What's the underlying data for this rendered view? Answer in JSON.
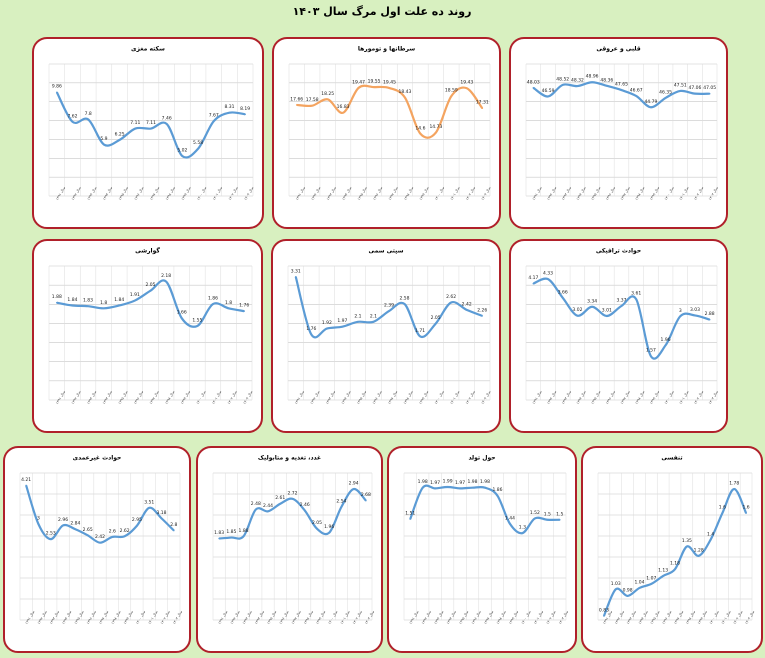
{
  "title": "روند ده علت اول مرگ سال ۱۴۰۳",
  "chart_data": [
    {
      "type": "line",
      "title": "سکته مغزی",
      "categories": [
        "سال ۱۳۹۱",
        "سال ۱۳۹۲",
        "سال ۱۳۹۳",
        "سال ۱۳۹۴",
        "سال ۱۳۹۵",
        "سال ۱۳۹۶",
        "سال ۱۳۹۷",
        "سال ۱۳۹۸",
        "سال ۱۳۹۹",
        "سال ۱۴۰۰",
        "سال ۱۴۰۱",
        "سال ۱۴۰۲",
        "سال ۱۴۰۳"
      ],
      "values": [
        9.86,
        7.62,
        7.8,
        5.9,
        6.25,
        7.11,
        7.11,
        7.46,
        5.02,
        5.58,
        7.67,
        8.31,
        8.19
      ],
      "color": "#5b9bd5",
      "ylim": [
        2,
        12
      ]
    },
    {
      "type": "line",
      "title": "سرطانها و تومورها",
      "categories": [
        "سال ۱۳۹۱",
        "سال ۱۳۹۲",
        "سال ۱۳۹۳",
        "سال ۱۳۹۴",
        "سال ۱۳۹۵",
        "سال ۱۳۹۶",
        "سال ۱۳۹۷",
        "سال ۱۳۹۸",
        "سال ۱۳۹۹",
        "سال ۱۴۰۰",
        "سال ۱۴۰۱",
        "سال ۱۴۰۲",
        "سال ۱۴۰۳"
      ],
      "values": [
        17.66,
        17.58,
        18.25,
        16.83,
        19.47,
        19.55,
        19.45,
        18.43,
        14.6,
        14.73,
        18.59,
        19.43,
        17.31
      ],
      "color": "#f4a460",
      "ylim": [
        8,
        22
      ]
    },
    {
      "type": "line",
      "title": "قلبی و عروقی",
      "categories": [
        "سال ۱۳۹۱",
        "سال ۱۳۹۲",
        "سال ۱۳۹۳",
        "سال ۱۳۹۴",
        "سال ۱۳۹۵",
        "سال ۱۳۹۶",
        "سال ۱۳۹۷",
        "سال ۱۳۹۸",
        "سال ۱۳۹۹",
        "سال ۱۴۰۰",
        "سال ۱۴۰۱",
        "سال ۱۴۰۲",
        "سال ۱۴۰۳"
      ],
      "values": [
        48.03,
        46.59,
        48.52,
        48.32,
        48.96,
        48.36,
        47.65,
        46.67,
        44.79,
        46.35,
        47.51,
        47.06,
        47.05
      ],
      "color": "#5b9bd5",
      "ylim": [
        30,
        52
      ]
    },
    {
      "type": "line",
      "title": "گوارشی",
      "categories": [
        "سال ۱۳۹۱",
        "سال ۱۳۹۲",
        "سال ۱۳۹۳",
        "سال ۱۳۹۴",
        "سال ۱۳۹۵",
        "سال ۱۳۹۶",
        "سال ۱۳۹۷",
        "سال ۱۳۹۸",
        "سال ۱۳۹۹",
        "سال ۱۴۰۰",
        "سال ۱۴۰۱",
        "سال ۱۴۰۲",
        "سال ۱۴۰۳"
      ],
      "values": [
        1.88,
        1.84,
        1.83,
        1.8,
        1.84,
        1.91,
        2.05,
        2.18,
        1.66,
        1.55,
        1.86,
        1.8,
        1.76
      ],
      "color": "#5b9bd5",
      "ylim": [
        0.5,
        2.4
      ]
    },
    {
      "type": "line",
      "title": "سپتی سمی",
      "categories": [
        "سال ۱۳۹۱",
        "سال ۱۳۹۲",
        "سال ۱۳۹۳",
        "سال ۱۳۹۴",
        "سال ۱۳۹۵",
        "سال ۱۳۹۶",
        "سال ۱۳۹۷",
        "سال ۱۳۹۸",
        "سال ۱۳۹۹",
        "سال ۱۴۰۰",
        "سال ۱۴۰۱",
        "سال ۱۴۰۲",
        "سال ۱۴۰۳"
      ],
      "values": [
        3.31,
        1.76,
        1.92,
        1.97,
        2.1,
        2.1,
        2.39,
        2.58,
        1.71,
        2.05,
        2.62,
        2.42,
        2.26
      ],
      "color": "#5b9bd5",
      "ylim": [
        0,
        3.6
      ]
    },
    {
      "type": "line",
      "title": "حوادث ترافیکی",
      "categories": [
        "سال ۱۳۹۱",
        "سال ۱۳۹۲",
        "سال ۱۳۹۳",
        "سال ۱۳۹۴",
        "سال ۱۳۹۵",
        "سال ۱۳۹۶",
        "سال ۱۳۹۷",
        "سال ۱۳۹۸",
        "سال ۱۳۹۹",
        "سال ۱۴۰۰",
        "سال ۱۴۰۱",
        "سال ۱۴۰۲",
        "سال ۱۴۰۳"
      ],
      "values": [
        4.17,
        4.33,
        3.66,
        3.02,
        3.34,
        3.01,
        3.37,
        3.61,
        1.57,
        1.96,
        3.0,
        3.03,
        2.88
      ],
      "color": "#5b9bd5",
      "ylim": [
        0,
        4.8
      ]
    },
    {
      "type": "line",
      "title": "حوادث غیرعمدی",
      "categories": [
        "سال ۱۳۹۱",
        "سال ۱۳۹۲",
        "سال ۱۳۹۳",
        "سال ۱۳۹۴",
        "سال ۱۳۹۵",
        "سال ۱۳۹۶",
        "سال ۱۳۹۷",
        "سال ۱۳۹۸",
        "سال ۱۳۹۹",
        "سال ۱۴۰۰",
        "سال ۱۴۰۱",
        "سال ۱۴۰۲",
        "سال ۱۴۰۳"
      ],
      "values": [
        4.21,
        3.0,
        2.53,
        2.96,
        2.84,
        2.65,
        2.42,
        2.6,
        2.62,
        2.95,
        3.51,
        3.18,
        2.8
      ],
      "color": "#5b9bd5",
      "ylim": [
        0,
        4.6
      ]
    },
    {
      "type": "line",
      "title": "غدد، تغذیه و متابولیک",
      "categories": [
        "سال ۱۳۹۱",
        "سال ۱۳۹۲",
        "سال ۱۳۹۳",
        "سال ۱۳۹۴",
        "سال ۱۳۹۵",
        "سال ۱۳۹۶",
        "سال ۱۳۹۷",
        "سال ۱۳۹۸",
        "سال ۱۳۹۹",
        "سال ۱۴۰۰",
        "سال ۱۴۰۱",
        "سال ۱۴۰۲",
        "سال ۱۴۰۳"
      ],
      "values": [
        1.83,
        1.85,
        1.88,
        2.48,
        2.44,
        2.61,
        2.72,
        2.46,
        2.05,
        1.96,
        2.54,
        2.94,
        2.68
      ],
      "color": "#5b9bd5",
      "ylim": [
        0,
        3.3
      ]
    },
    {
      "type": "line",
      "title": "حول تولد",
      "categories": [
        "سال ۱۳۹۱",
        "سال ۱۳۹۲",
        "سال ۱۳۹۳",
        "سال ۱۳۹۴",
        "سال ۱۳۹۵",
        "سال ۱۳۹۶",
        "سال ۱۳۹۷",
        "سال ۱۳۹۸",
        "سال ۱۳۹۹",
        "سال ۱۴۰۰",
        "سال ۱۴۰۱",
        "سال ۱۴۰۲",
        "سال ۱۴۰۳"
      ],
      "values": [
        1.51,
        1.98,
        1.97,
        1.99,
        1.97,
        1.98,
        1.98,
        1.86,
        1.44,
        1.3,
        1.52,
        1.5,
        1.5
      ],
      "color": "#5b9bd5",
      "ylim": [
        0,
        2.2
      ]
    },
    {
      "type": "line",
      "title": "تنفسی",
      "categories": [
        "سال ۱۳۹۱",
        "سال ۱۳۹۲",
        "سال ۱۳۹۳",
        "سال ۱۳۹۴",
        "سال ۱۳۹۵",
        "سال ۱۳۹۶",
        "سال ۱۳۹۷",
        "سال ۱۳۹۸",
        "سال ۱۳۹۹",
        "سال ۱۴۰۰",
        "سال ۱۴۰۱",
        "سال ۱۴۰۲",
        "سال ۱۴۰۳"
      ],
      "values": [
        0.83,
        1.03,
        0.98,
        1.04,
        1.07,
        1.13,
        1.18,
        1.35,
        1.28,
        1.4,
        1.6,
        1.78,
        1.6
      ],
      "color": "#5b9bd5",
      "ylim": [
        0.8,
        1.9
      ]
    }
  ]
}
